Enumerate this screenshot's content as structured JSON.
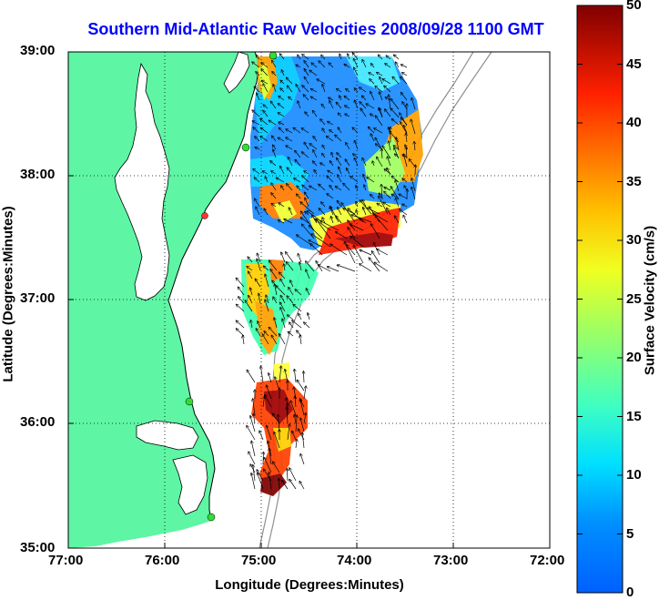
{
  "title": "Southern Mid-Atlantic Raw Velocities 2008/09/28 1100 GMT",
  "x_axis": {
    "label": "Longitude (Degrees:Minutes)",
    "ticks": [
      "77:00",
      "76:00",
      "75:00",
      "74:00",
      "73:00",
      "72:00"
    ]
  },
  "y_axis": {
    "label": "Latitude (Degrees:Minutes)",
    "ticks": [
      "39:00",
      "38:00",
      "37:00",
      "36:00",
      "35:00"
    ]
  },
  "colorbar": {
    "label": "Surface Velocity (cm/s)",
    "ticks": [
      "50",
      "45",
      "40",
      "35",
      "30",
      "25",
      "20",
      "15",
      "10",
      "5",
      "0"
    ],
    "range": [
      0,
      50
    ],
    "colormap": "jet"
  },
  "colors": {
    "land": "#5ef5a5",
    "title": "#0000ff",
    "coast_line": "#000000",
    "bathymetry": "#909090",
    "station_marker": "#33dd33",
    "station_marker_alt": "#ff3333"
  },
  "map": {
    "lon_range": [
      -77,
      -72
    ],
    "lat_range": [
      35,
      39
    ],
    "grid": "dotted"
  }
}
